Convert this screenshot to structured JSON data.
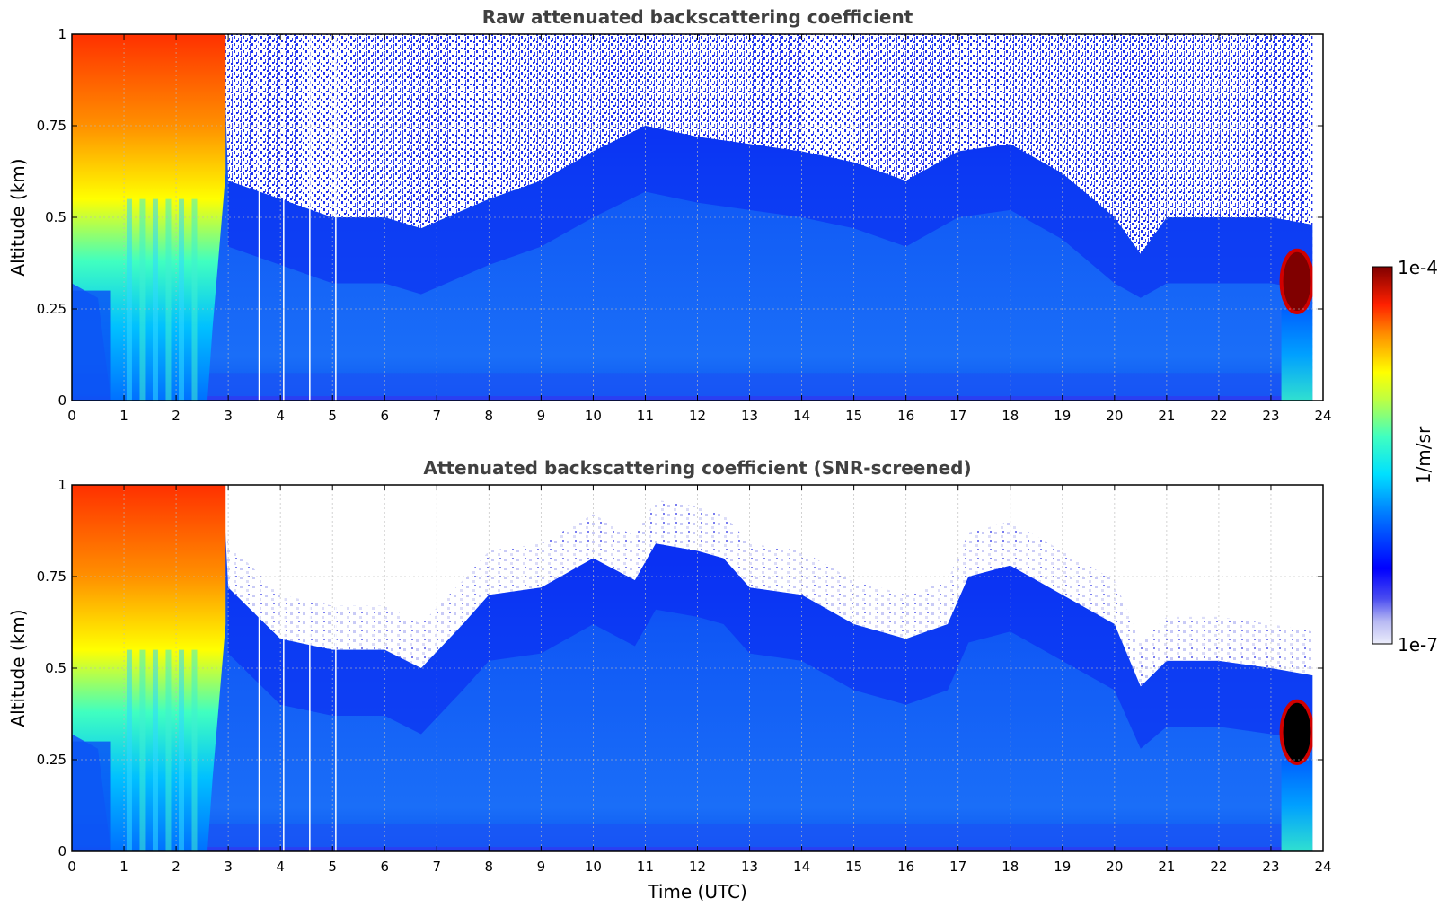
{
  "figure": {
    "xlabel": "Time (UTC)",
    "colorbar": {
      "label": "1/m/sr",
      "min_label": "1e-7",
      "max_label": "1e-4",
      "colormap": "jet",
      "scale": "log",
      "low_color": "#ecedfb",
      "high_color": "#800000"
    }
  },
  "chart_data": [
    {
      "type": "heatmap",
      "id": "raw",
      "title": "Raw attenuated backscattering coefficient",
      "xlabel": "",
      "ylabel": "Altitude (km)",
      "xlim": [
        0,
        24
      ],
      "ylim": [
        0,
        1
      ],
      "xticks": [
        "0",
        "1",
        "2",
        "3",
        "4",
        "5",
        "6",
        "7",
        "8",
        "9",
        "10",
        "11",
        "12",
        "13",
        "14",
        "15",
        "16",
        "17",
        "18",
        "19",
        "20",
        "21",
        "22",
        "23",
        "24"
      ],
      "yticks": [
        {
          "value": 0,
          "label": "0"
        },
        {
          "value": 0.25,
          "label": "0.25"
        },
        {
          "value": 0.5,
          "label": "0.5"
        },
        {
          "value": 0.75,
          "label": "0.75"
        },
        {
          "value": 1,
          "label": "1"
        }
      ],
      "grid": true,
      "data_end_time": 23.8,
      "signal_top_km": [
        [
          0,
          1
        ],
        [
          2.9,
          1
        ],
        [
          3.0,
          0.6
        ],
        [
          4,
          0.55
        ],
        [
          5,
          0.5
        ],
        [
          6,
          0.5
        ],
        [
          6.7,
          0.47
        ],
        [
          8,
          0.55
        ],
        [
          9,
          0.6
        ],
        [
          10,
          0.68
        ],
        [
          11,
          0.75
        ],
        [
          12,
          0.72
        ],
        [
          13,
          0.7
        ],
        [
          14,
          0.68
        ],
        [
          15,
          0.65
        ],
        [
          16,
          0.6
        ],
        [
          17,
          0.68
        ],
        [
          18,
          0.7
        ],
        [
          19,
          0.62
        ],
        [
          20,
          0.5
        ],
        [
          20.5,
          0.4
        ],
        [
          21,
          0.5
        ],
        [
          22,
          0.5
        ],
        [
          23,
          0.5
        ],
        [
          23.8,
          0.48
        ]
      ],
      "dense_layer_time": [
        23.2,
        23.8
      ],
      "dense_layer_alt_km": [
        0.25,
        0.4
      ]
    },
    {
      "type": "heatmap",
      "id": "screened",
      "title": "Attenuated backscattering coefficient (SNR-screened)",
      "xlabel": "Time (UTC)",
      "ylabel": "Altitude (km)",
      "xlim": [
        0,
        24
      ],
      "ylim": [
        0,
        1
      ],
      "xticks": [
        "0",
        "1",
        "2",
        "3",
        "4",
        "5",
        "6",
        "7",
        "8",
        "9",
        "10",
        "11",
        "12",
        "13",
        "14",
        "15",
        "16",
        "17",
        "18",
        "19",
        "20",
        "21",
        "22",
        "23",
        "24"
      ],
      "yticks": [
        {
          "value": 0,
          "label": "0"
        },
        {
          "value": 0.25,
          "label": "0.25"
        },
        {
          "value": 0.5,
          "label": "0.5"
        },
        {
          "value": 0.75,
          "label": "0.75"
        },
        {
          "value": 1,
          "label": "1"
        }
      ],
      "grid": true,
      "data_end_time": 23.8,
      "signal_top_km": [
        [
          0,
          1
        ],
        [
          2.9,
          1
        ],
        [
          3.0,
          0.72
        ],
        [
          4,
          0.58
        ],
        [
          5,
          0.55
        ],
        [
          6,
          0.55
        ],
        [
          6.7,
          0.5
        ],
        [
          7.5,
          0.62
        ],
        [
          8,
          0.7
        ],
        [
          9,
          0.72
        ],
        [
          10,
          0.8
        ],
        [
          10.8,
          0.74
        ],
        [
          11.2,
          0.84
        ],
        [
          12,
          0.82
        ],
        [
          12.5,
          0.8
        ],
        [
          13,
          0.72
        ],
        [
          14,
          0.7
        ],
        [
          15,
          0.62
        ],
        [
          16,
          0.58
        ],
        [
          16.8,
          0.62
        ],
        [
          17.2,
          0.75
        ],
        [
          18,
          0.78
        ],
        [
          19,
          0.7
        ],
        [
          20,
          0.62
        ],
        [
          20.5,
          0.45
        ],
        [
          21,
          0.52
        ],
        [
          22,
          0.52
        ],
        [
          23,
          0.5
        ],
        [
          23.8,
          0.48
        ]
      ],
      "dense_layer_time": [
        23.2,
        23.8
      ],
      "dense_layer_alt_km": [
        0.25,
        0.4
      ]
    }
  ]
}
